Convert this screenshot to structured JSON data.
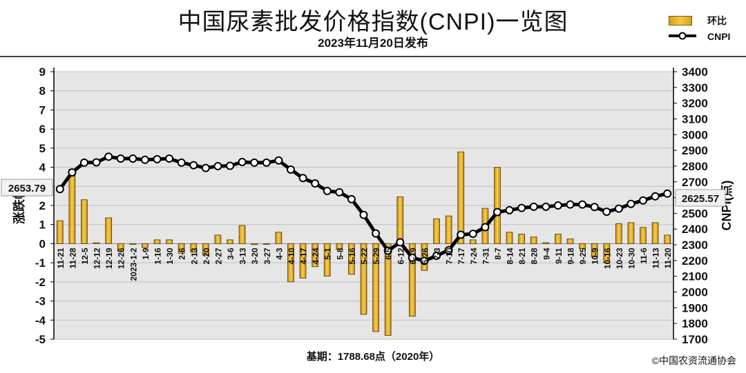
{
  "header": {
    "title": "中国尿素批发价格指数(CNPI)一览图",
    "subtitle": "2023年11月20日发布"
  },
  "legend": {
    "bar_label": "环比",
    "line_label": "CNPI"
  },
  "footer": {
    "base_note": "基期：1788.68点（2020年）",
    "copyright": "©中国农资流通协会"
  },
  "colors": {
    "bar": "#e8b030",
    "bar_edge": "#6b4a10",
    "line": "#000000",
    "grid": "#bfbfbf",
    "plot_bg": "#e6e6e6"
  },
  "chart_data": {
    "type": "bar",
    "left_ylabel": "涨跌幅",
    "right_ylabel": "CNPI(点)",
    "left_ylim": [
      -5,
      9
    ],
    "right_ylim": [
      1700,
      3400
    ],
    "left_ticks": [
      "-5",
      "-4",
      "-3",
      "-2",
      "-1",
      "0",
      "1",
      "2",
      "3",
      "4",
      "5",
      "6",
      "7",
      "8",
      "9"
    ],
    "right_ticks": [
      "1700",
      "1800",
      "1900",
      "2000",
      "2100",
      "2200",
      "2300",
      "2400",
      "2500",
      "2600",
      "2700",
      "2800",
      "2900",
      "3000",
      "3100",
      "3200",
      "3300",
      "3400"
    ],
    "callout_start": "2653.79",
    "callout_end": "2625.57",
    "grid": true,
    "legend_position": "top-right",
    "categories": [
      "11-21",
      "11-28",
      "12-5",
      "12-12",
      "12-19",
      "12-26",
      "2023-1-2",
      "1-9",
      "1-16",
      "1-30",
      "2-6",
      "2-13",
      "2-20",
      "2-27",
      "3-6",
      "3-13",
      "3-20",
      "3-27",
      "4-3",
      "4-10",
      "4-17",
      "4-24",
      "5-1",
      "5-8",
      "5-16",
      "5-22",
      "5-29",
      "6-5",
      "6-12",
      "6-19",
      "6-26",
      "7-3",
      "7-10",
      "7-17",
      "7-24",
      "7-31",
      "8-7",
      "8-14",
      "8-21",
      "8-28",
      "9-4",
      "9-11",
      "9-18",
      "9-25",
      "10-9",
      "10-16",
      "10-23",
      "10-30",
      "11-6",
      "11-13",
      "11-20"
    ],
    "series": [
      {
        "name": "环比",
        "type": "bar",
        "values": [
          1.2,
          3.9,
          2.3,
          0.05,
          1.35,
          -0.4,
          0.0,
          -0.2,
          0.2,
          0.2,
          -0.5,
          -0.45,
          -0.6,
          0.45,
          0.2,
          0.95,
          -0.05,
          0.0,
          0.6,
          -2.0,
          -1.8,
          -1.2,
          -1.7,
          -0.3,
          -1.6,
          -3.7,
          -4.6,
          -4.8,
          2.45,
          -3.8,
          -1.4,
          1.3,
          1.45,
          4.8,
          0.2,
          1.85,
          4.0,
          0.6,
          0.5,
          0.35,
          0.05,
          0.5,
          0.25,
          -0.25,
          -0.7,
          -1.0,
          1.05,
          1.1,
          0.85,
          1.1,
          0.45
        ]
      },
      {
        "name": "CNPI",
        "type": "line",
        "values": [
          2653.79,
          2760,
          2822,
          2824,
          2860,
          2848,
          2848,
          2840,
          2844,
          2848,
          2822,
          2806,
          2788,
          2800,
          2802,
          2826,
          2822,
          2822,
          2836,
          2778,
          2724,
          2690,
          2642,
          2634,
          2590,
          2490,
          2372,
          2262,
          2316,
          2218,
          2198,
          2230,
          2266,
          2364,
          2370,
          2412,
          2508,
          2520,
          2534,
          2542,
          2542,
          2550,
          2556,
          2556,
          2540,
          2510,
          2530,
          2560,
          2582,
          2608,
          2625.57
        ]
      }
    ]
  }
}
